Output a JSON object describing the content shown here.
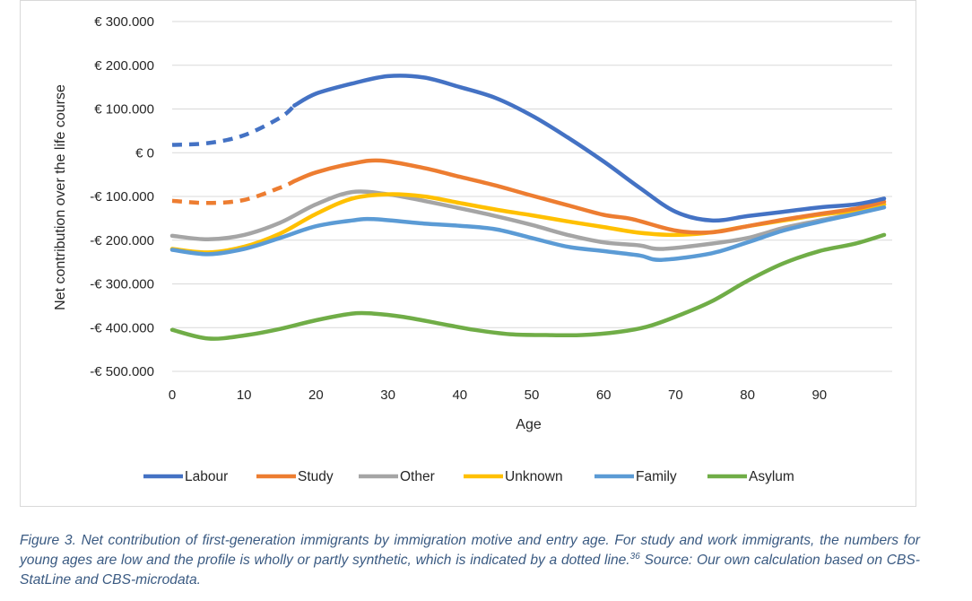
{
  "chart_data": {
    "type": "line",
    "title": "",
    "xlabel": "Age",
    "ylabel": "Net contribution over the life course",
    "xlim": [
      0,
      100
    ],
    "ylim": [
      -500000,
      300000
    ],
    "x_ticks": [
      0,
      10,
      20,
      30,
      40,
      50,
      60,
      70,
      80,
      90
    ],
    "x_tick_labels": [
      "0",
      "10",
      "20",
      "30",
      "40",
      "50",
      "60",
      "70",
      "80",
      "90"
    ],
    "y_ticks": [
      300000,
      200000,
      100000,
      0,
      -100000,
      -200000,
      -300000,
      -400000,
      -500000
    ],
    "y_tick_labels": [
      "€ 300.000",
      "€ 200.000",
      "€ 100.000",
      "€ 0",
      "-€ 100.000",
      "-€ 200.000",
      "-€ 300.000",
      "-€ 400.000",
      "-€ 500.000"
    ],
    "grid": "horizontal",
    "legend_position": "bottom",
    "series": [
      {
        "name": "Labour",
        "color": "#4472C4",
        "dashed_until": 17,
        "points": [
          [
            0,
            18000
          ],
          [
            5,
            22000
          ],
          [
            10,
            40000
          ],
          [
            15,
            80000
          ],
          [
            17,
            108000
          ],
          [
            20,
            135000
          ],
          [
            25,
            158000
          ],
          [
            30,
            175000
          ],
          [
            35,
            172000
          ],
          [
            40,
            150000
          ],
          [
            45,
            125000
          ],
          [
            50,
            85000
          ],
          [
            55,
            35000
          ],
          [
            60,
            -20000
          ],
          [
            65,
            -80000
          ],
          [
            70,
            -135000
          ],
          [
            75,
            -155000
          ],
          [
            80,
            -145000
          ],
          [
            85,
            -135000
          ],
          [
            90,
            -125000
          ],
          [
            95,
            -118000
          ],
          [
            99,
            -105000
          ]
        ]
      },
      {
        "name": "Study",
        "color": "#ED7D31",
        "dashed_until": 17,
        "points": [
          [
            0,
            -110000
          ],
          [
            5,
            -115000
          ],
          [
            10,
            -108000
          ],
          [
            15,
            -80000
          ],
          [
            17,
            -65000
          ],
          [
            20,
            -45000
          ],
          [
            25,
            -25000
          ],
          [
            29,
            -18000
          ],
          [
            35,
            -35000
          ],
          [
            40,
            -55000
          ],
          [
            45,
            -75000
          ],
          [
            50,
            -98000
          ],
          [
            55,
            -120000
          ],
          [
            60,
            -142000
          ],
          [
            64,
            -152000
          ],
          [
            70,
            -178000
          ],
          [
            75,
            -182000
          ],
          [
            80,
            -168000
          ],
          [
            85,
            -153000
          ],
          [
            90,
            -140000
          ],
          [
            95,
            -128000
          ],
          [
            99,
            -112000
          ]
        ]
      },
      {
        "name": "Other",
        "color": "#A5A5A5",
        "dashed_until": null,
        "points": [
          [
            0,
            -190000
          ],
          [
            5,
            -198000
          ],
          [
            10,
            -188000
          ],
          [
            15,
            -160000
          ],
          [
            20,
            -118000
          ],
          [
            25,
            -90000
          ],
          [
            30,
            -95000
          ],
          [
            35,
            -110000
          ],
          [
            40,
            -127000
          ],
          [
            45,
            -145000
          ],
          [
            50,
            -165000
          ],
          [
            55,
            -188000
          ],
          [
            60,
            -205000
          ],
          [
            65,
            -212000
          ],
          [
            68,
            -220000
          ],
          [
            75,
            -208000
          ],
          [
            80,
            -195000
          ],
          [
            85,
            -172000
          ],
          [
            90,
            -155000
          ],
          [
            95,
            -138000
          ],
          [
            99,
            -118000
          ]
        ]
      },
      {
        "name": "Unknown",
        "color": "#FFC000",
        "dashed_until": null,
        "points": [
          [
            0,
            -220000
          ],
          [
            5,
            -228000
          ],
          [
            10,
            -215000
          ],
          [
            15,
            -185000
          ],
          [
            20,
            -140000
          ],
          [
            25,
            -105000
          ],
          [
            30,
            -95000
          ],
          [
            35,
            -100000
          ],
          [
            40,
            -115000
          ],
          [
            45,
            -130000
          ],
          [
            50,
            -143000
          ],
          [
            55,
            -157000
          ],
          [
            60,
            -170000
          ],
          [
            65,
            -183000
          ],
          [
            70,
            -188000
          ],
          [
            75,
            -182000
          ],
          [
            80,
            -168000
          ],
          [
            85,
            -155000
          ],
          [
            90,
            -142000
          ],
          [
            95,
            -132000
          ],
          [
            99,
            -118000
          ]
        ]
      },
      {
        "name": "Family",
        "color": "#5B9BD5",
        "dashed_until": null,
        "points": [
          [
            0,
            -222000
          ],
          [
            5,
            -232000
          ],
          [
            10,
            -220000
          ],
          [
            15,
            -195000
          ],
          [
            20,
            -168000
          ],
          [
            25,
            -155000
          ],
          [
            28,
            -152000
          ],
          [
            35,
            -162000
          ],
          [
            40,
            -167000
          ],
          [
            45,
            -175000
          ],
          [
            50,
            -195000
          ],
          [
            55,
            -215000
          ],
          [
            60,
            -225000
          ],
          [
            65,
            -235000
          ],
          [
            68,
            -245000
          ],
          [
            75,
            -230000
          ],
          [
            80,
            -205000
          ],
          [
            85,
            -178000
          ],
          [
            90,
            -158000
          ],
          [
            95,
            -140000
          ],
          [
            99,
            -125000
          ]
        ]
      },
      {
        "name": "Asylum",
        "color": "#70AD47",
        "dashed_until": null,
        "points": [
          [
            0,
            -405000
          ],
          [
            5,
            -425000
          ],
          [
            10,
            -418000
          ],
          [
            15,
            -403000
          ],
          [
            20,
            -383000
          ],
          [
            25,
            -368000
          ],
          [
            28,
            -368000
          ],
          [
            32,
            -375000
          ],
          [
            37,
            -390000
          ],
          [
            42,
            -405000
          ],
          [
            47,
            -415000
          ],
          [
            52,
            -417000
          ],
          [
            57,
            -417000
          ],
          [
            62,
            -410000
          ],
          [
            66,
            -398000
          ],
          [
            70,
            -375000
          ],
          [
            75,
            -340000
          ],
          [
            80,
            -293000
          ],
          [
            85,
            -253000
          ],
          [
            90,
            -225000
          ],
          [
            95,
            -208000
          ],
          [
            99,
            -188000
          ]
        ]
      }
    ]
  },
  "caption": {
    "text": "Figure 3. Net contribution of first-generation immigrants by immigration motive and entry age. For study and work immigrants, the numbers for young ages are low and the profile is wholly or partly synthetic, which is indicated by a dotted line.",
    "footnote_number": "36",
    "source": " Source: Our own calculation based on CBS-StatLine and CBS-microdata."
  }
}
